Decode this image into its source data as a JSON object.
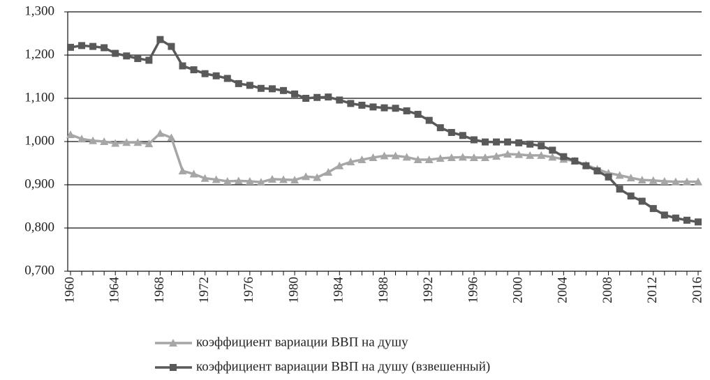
{
  "chart_data": {
    "type": "line",
    "x": [
      1960,
      1961,
      1962,
      1963,
      1964,
      1965,
      1966,
      1967,
      1968,
      1969,
      1970,
      1971,
      1972,
      1973,
      1974,
      1975,
      1976,
      1977,
      1978,
      1979,
      1980,
      1981,
      1982,
      1983,
      1984,
      1985,
      1986,
      1987,
      1988,
      1989,
      1990,
      1991,
      1992,
      1993,
      1994,
      1995,
      1996,
      1997,
      1998,
      1999,
      2000,
      2001,
      2002,
      2003,
      2004,
      2005,
      2006,
      2007,
      2008,
      2009,
      2010,
      2011,
      2012,
      2013,
      2014,
      2015,
      2016
    ],
    "series": [
      {
        "name": "коэффициент вариации ВВП на душу",
        "color": "#a6a6a6",
        "marker": "triangle",
        "values": [
          1.016,
          1.006,
          1.002,
          1.0,
          0.996,
          0.998,
          0.998,
          0.995,
          1.019,
          1.009,
          0.932,
          0.925,
          0.915,
          0.912,
          0.908,
          0.909,
          0.908,
          0.906,
          0.913,
          0.912,
          0.911,
          0.919,
          0.917,
          0.929,
          0.944,
          0.953,
          0.958,
          0.963,
          0.967,
          0.967,
          0.964,
          0.958,
          0.958,
          0.961,
          0.963,
          0.964,
          0.963,
          0.963,
          0.966,
          0.971,
          0.97,
          0.968,
          0.968,
          0.964,
          0.959,
          0.955,
          0.946,
          0.936,
          0.927,
          0.922,
          0.916,
          0.911,
          0.91,
          0.908,
          0.907,
          0.907,
          0.907
        ]
      },
      {
        "name": "коэффициент вариации ВВП на душу (взвешенный)",
        "color": "#595959",
        "marker": "square",
        "values": [
          1.218,
          1.222,
          1.22,
          1.217,
          1.204,
          1.198,
          1.192,
          1.188,
          1.236,
          1.22,
          1.175,
          1.166,
          1.157,
          1.152,
          1.146,
          1.134,
          1.13,
          1.123,
          1.122,
          1.118,
          1.11,
          1.1,
          1.102,
          1.103,
          1.096,
          1.088,
          1.084,
          1.08,
          1.078,
          1.077,
          1.071,
          1.063,
          1.049,
          1.032,
          1.021,
          1.014,
          1.004,
          0.999,
          0.999,
          0.999,
          0.997,
          0.994,
          0.99,
          0.98,
          0.965,
          0.955,
          0.944,
          0.932,
          0.918,
          0.89,
          0.874,
          0.862,
          0.845,
          0.83,
          0.823,
          0.818,
          0.814
        ]
      }
    ],
    "xlim": [
      1960,
      2016
    ],
    "xticks": [
      1960,
      1964,
      1968,
      1972,
      1976,
      1980,
      1984,
      1988,
      1992,
      1996,
      2000,
      2004,
      2008,
      2012,
      2016
    ],
    "ylim": [
      0.7,
      1.3
    ],
    "yticks": [
      {
        "value": 0.7,
        "label": "0,700"
      },
      {
        "value": 0.8,
        "label": "0,800"
      },
      {
        "value": 0.9,
        "label": "0,900"
      },
      {
        "value": 1.0,
        "label": "1,000"
      },
      {
        "value": 1.1,
        "label": "1,100"
      },
      {
        "value": 1.2,
        "label": "1,200"
      },
      {
        "value": 1.3,
        "label": "1,300"
      }
    ],
    "grid": true,
    "legend": "bottom"
  }
}
